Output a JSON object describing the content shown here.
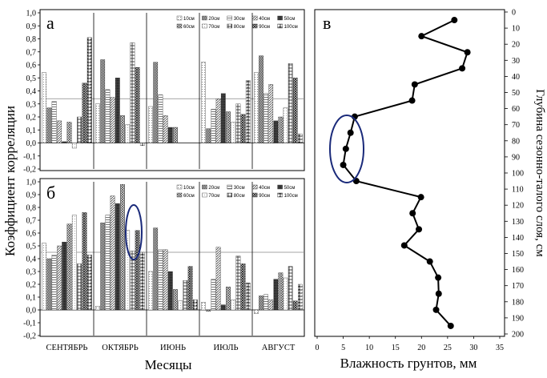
{
  "chart_data": [
    {
      "type": "bar",
      "panel": "а",
      "ylim": [
        -0.2,
        1.0
      ],
      "ytick_labels": [
        "1,0",
        "0,9",
        "0,8",
        "0,7",
        "0,6",
        "0,5",
        "0,4",
        "0,3",
        "0,2",
        "0,1",
        "0,0",
        "-0,1",
        "-0,2"
      ],
      "reference_line": 0.34,
      "legend_placement": "top-right",
      "categories": [
        "СЕНТЯБРЬ",
        "ОКТЯБРЬ",
        "ИЮНЬ",
        "ИЮЛЬ",
        "АВГУСТ"
      ],
      "series": [
        {
          "name": "10см",
          "values": [
            0.54,
            0.3,
            0.28,
            0.62,
            0.54
          ]
        },
        {
          "name": "20см",
          "values": [
            0.27,
            0.64,
            0.62,
            0.11,
            0.67
          ]
        },
        {
          "name": "30см",
          "values": [
            0.32,
            0.41,
            0.37,
            0.26,
            0.38
          ]
        },
        {
          "name": "40см",
          "values": [
            0.17,
            0.35,
            0.21,
            0.34,
            0.45
          ]
        },
        {
          "name": "50см",
          "values": [
            0.01,
            0.5,
            0.12,
            0.38,
            0.17
          ]
        },
        {
          "name": "60см",
          "values": [
            0.16,
            0.21,
            0.12,
            0.24,
            0.2
          ]
        },
        {
          "name": "70см",
          "values": [
            -0.04,
            0.14,
            0.0,
            0.16,
            0.27
          ]
        },
        {
          "name": "80см",
          "values": [
            0.2,
            0.77,
            0.0,
            0.3,
            0.61
          ]
        },
        {
          "name": "90см",
          "values": [
            0.46,
            0.58,
            0.0,
            0.22,
            0.5
          ]
        },
        {
          "name": "100см",
          "values": [
            0.81,
            -0.02,
            0.0,
            0.48,
            0.07
          ]
        }
      ]
    },
    {
      "type": "bar",
      "panel": "б",
      "ylim": [
        -0.2,
        1.0
      ],
      "ytick_labels": [
        "1,0",
        "0,9",
        "0,8",
        "0,7",
        "0,6",
        "0,5",
        "0,4",
        "0,3",
        "0,2",
        "0,1",
        "0,0",
        "-0,1",
        "-0,2"
      ],
      "reference_line": 0.45,
      "legend_placement": "top-right",
      "categories": [
        "СЕНТЯБРЬ",
        "ОКТЯБРЬ",
        "ИЮНЬ",
        "ИЮЛЬ",
        "АВГУСТ"
      ],
      "series": [
        {
          "name": "10см",
          "values": [
            0.52,
            0.03,
            0.3,
            0.06,
            -0.03
          ]
        },
        {
          "name": "20см",
          "values": [
            0.4,
            0.68,
            0.64,
            -0.01,
            0.11
          ]
        },
        {
          "name": "30см",
          "values": [
            0.43,
            0.74,
            0.47,
            0.24,
            0.12
          ]
        },
        {
          "name": "40см",
          "values": [
            0.5,
            0.89,
            0.47,
            0.49,
            0.08
          ]
        },
        {
          "name": "50см",
          "values": [
            0.53,
            0.83,
            0.3,
            0.04,
            0.24
          ]
        },
        {
          "name": "60см",
          "values": [
            0.67,
            0.98,
            0.16,
            0.18,
            0.29
          ]
        },
        {
          "name": "70см",
          "values": [
            0.74,
            0.62,
            0.07,
            0.08,
            0.25
          ]
        },
        {
          "name": "80см",
          "values": [
            0.36,
            0.46,
            0.23,
            0.42,
            0.34
          ]
        },
        {
          "name": "90см",
          "values": [
            0.76,
            0.62,
            0.34,
            0.36,
            0.07
          ]
        },
        {
          "name": "100см",
          "values": [
            0.43,
            0.45,
            0.08,
            0.21,
            0.2
          ]
        }
      ]
    },
    {
      "type": "line",
      "panel": "в",
      "xlabel": "Влажность грунтов, мм",
      "ylabel": "Глубина сезонно-талого слоя, см",
      "xlim": [
        0,
        35
      ],
      "ylim": [
        200,
        0
      ],
      "xticks": [
        0,
        5,
        10,
        15,
        20,
        25,
        30,
        35
      ],
      "yticks": [
        0,
        10,
        20,
        30,
        40,
        50,
        60,
        70,
        80,
        90,
        100,
        110,
        120,
        130,
        140,
        150,
        160,
        170,
        180,
        190,
        200
      ],
      "x": [
        26.3,
        20.0,
        28.8,
        27.8,
        18.7,
        18.2,
        7.2,
        6.4,
        5.5,
        5.0,
        7.5,
        19.9,
        18.3,
        19.5,
        16.7,
        21.6,
        23.2,
        23.3,
        22.8,
        25.6
      ],
      "y": [
        5,
        15,
        25,
        35,
        45,
        55,
        65,
        75,
        85,
        95,
        105,
        115,
        125,
        135,
        145,
        155,
        165,
        175,
        185,
        195
      ]
    }
  ],
  "labels": {
    "ylabel_left": "Коэффициент корреляции",
    "xlabel_left": "Месяцы",
    "panel_a": "а",
    "panel_b": "б",
    "panel_c": "в"
  }
}
